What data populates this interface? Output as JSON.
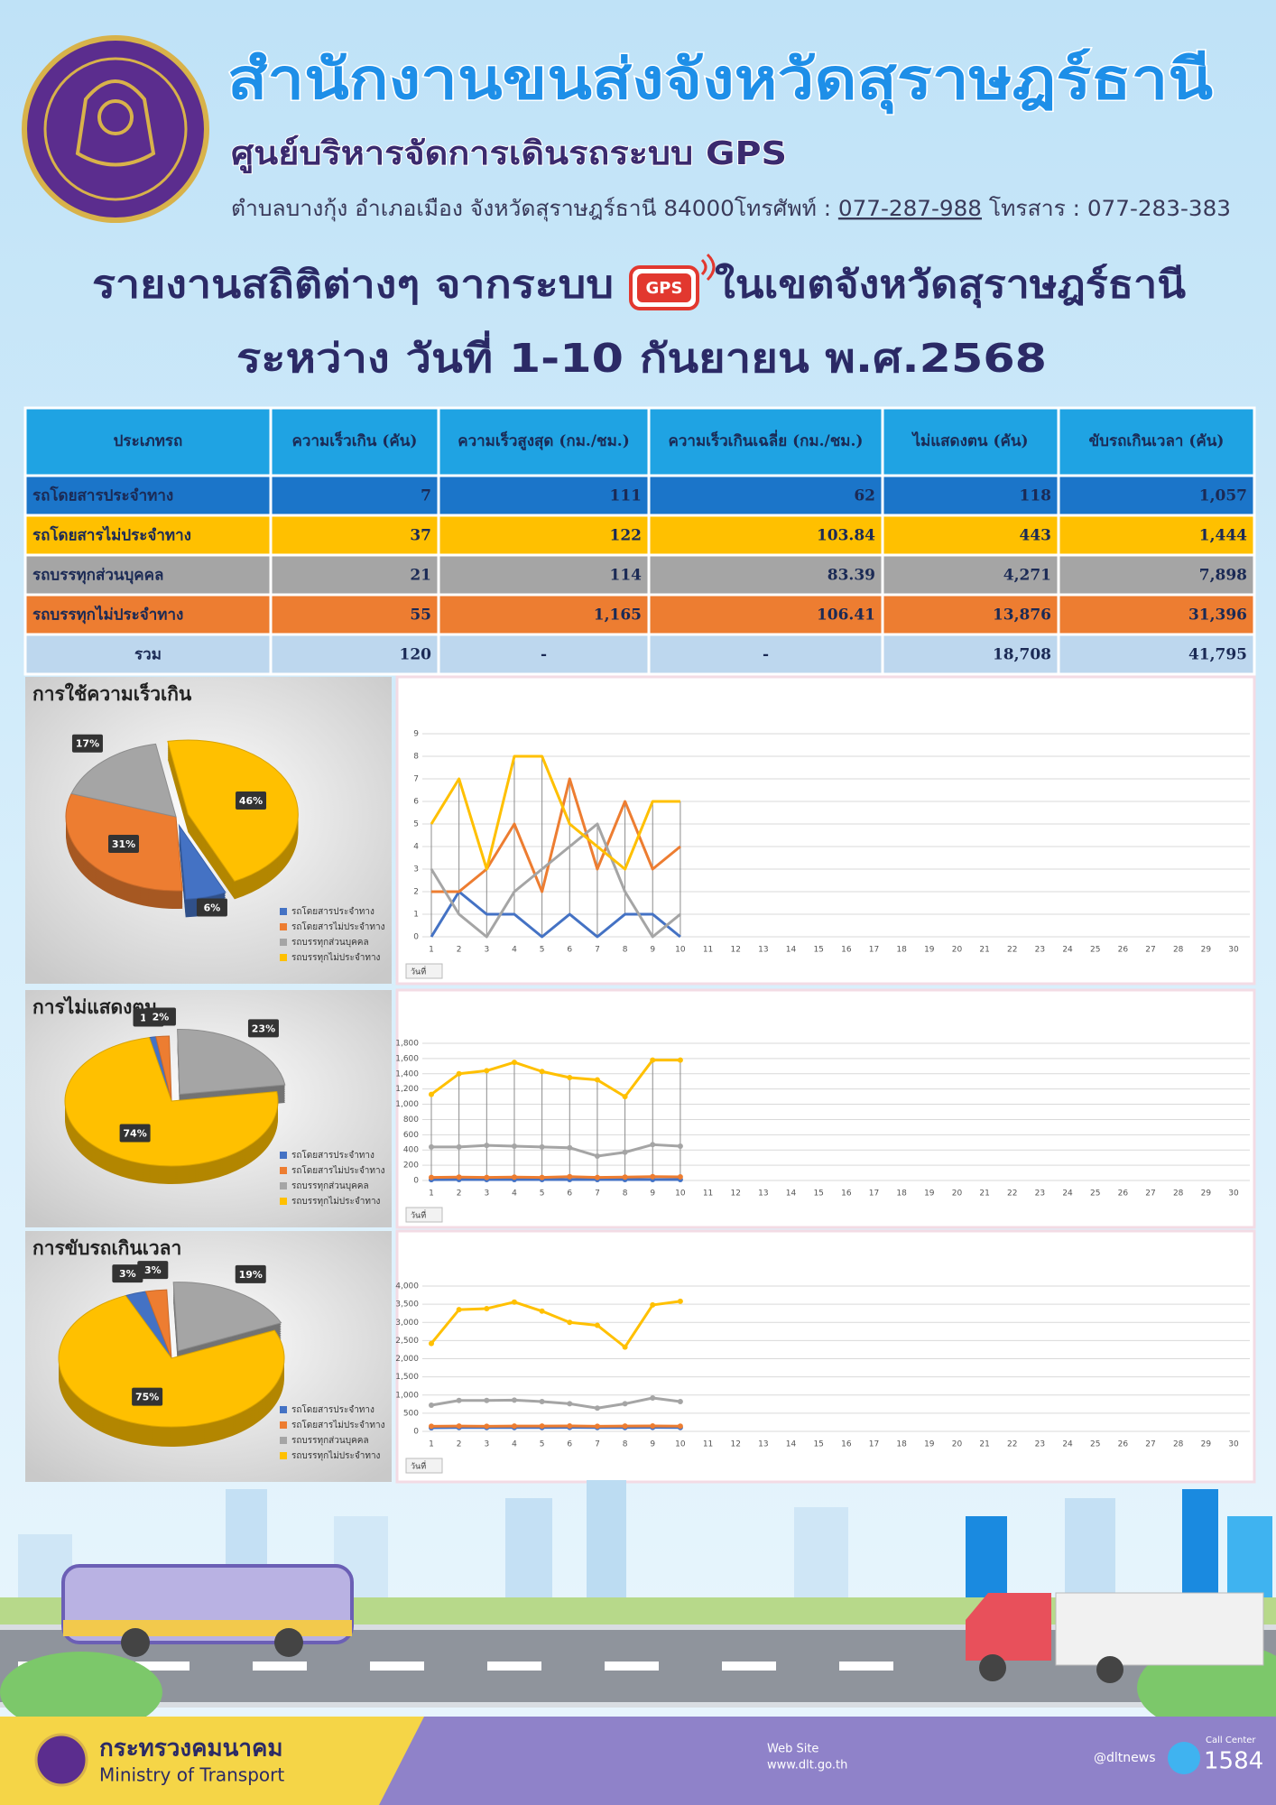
{
  "header": {
    "org": "สำนักงานขนส่งจังหวัดสุราษฎร์ธานี",
    "center": "ศูนย์บริหารจัดการเดินรถระบบ GPS",
    "address": "ตำบลบางกุ้ง อำเภอเมือง จังหวัดสุราษฎร์ธานี 84000โทรศัพท์ : ",
    "phone": "077-287-988",
    "fax": " โทรสาร : 077-283-383"
  },
  "report": {
    "title_before": "รายงานสถิติต่างๆ จากระบบ",
    "gps": "GPS",
    "title_after": "ในเขตจังหวัดสุราษฎร์ธานี",
    "period": "ระหว่าง วันที่ 1-10 กันยายน พ.ศ.2568"
  },
  "table": {
    "columns": [
      "ประเภทรถ",
      "ความเร็วเกิน (คัน)",
      "ความเร็วสูงสุด (กม./ชม.)",
      "ความเร็วเกินเฉลี่ย (กม./ชม.)",
      "ไม่แสดงตน (คัน)",
      "ขับรถเกินเวลา (คัน)"
    ],
    "rows": [
      [
        "รถโดยสารประจำทาง",
        "7",
        "111",
        "62",
        "118",
        "1,057"
      ],
      [
        "รถโดยสารไม่ประจำทาง",
        "37",
        "122",
        "103.84",
        "443",
        "1,444"
      ],
      [
        "รถบรรทุกส่วนบุคคล",
        "21",
        "114",
        "83.39",
        "4,271",
        "7,898"
      ],
      [
        "รถบรรทุกไม่ประจำทาง",
        "55",
        "1,165",
        "106.41",
        "13,876",
        "31,396"
      ],
      [
        "รวม",
        "120",
        "-",
        "-",
        "18,708",
        "41,795"
      ]
    ]
  },
  "chart_data": [
    {
      "type": "pie",
      "title": "การใช้ความเร็วเกิน",
      "categories": [
        "รถโดยสารประจำทาง",
        "รถโดยสารไม่ประจำทาง",
        "รถบรรทุกส่วนบุคคล",
        "รถบรรทุกไม่ประจำทาง"
      ],
      "values": [
        6,
        31,
        17,
        46
      ],
      "value_labels": [
        "6%",
        "31%",
        "17%",
        "46%"
      ],
      "colors": [
        "#4472c4",
        "#ed7d31",
        "#a5a5a5",
        "#ffc000"
      ]
    },
    {
      "type": "line",
      "x": [
        1,
        2,
        3,
        4,
        5,
        6,
        7,
        8,
        9,
        10
      ],
      "xlim": [
        1,
        30
      ],
      "xticks": [
        1,
        2,
        3,
        4,
        5,
        6,
        7,
        8,
        9,
        10,
        11,
        12,
        13,
        14,
        15,
        16,
        17,
        18,
        19,
        20,
        21,
        22,
        23,
        24,
        25,
        26,
        27,
        28,
        29,
        30
      ],
      "ylim": [
        0,
        9
      ],
      "yticks": [
        0,
        1,
        2,
        3,
        4,
        5,
        6,
        7,
        8,
        9
      ],
      "grid": true,
      "markers": false,
      "high_low_lines": true,
      "filter_label": "วันที่",
      "series": [
        {
          "color": "#4472c4",
          "values": [
            0,
            2,
            1,
            1,
            0,
            1,
            0,
            1,
            1,
            0
          ]
        },
        {
          "color": "#ed7d31",
          "values": [
            2,
            2,
            3,
            5,
            2,
            7,
            3,
            6,
            3,
            4
          ]
        },
        {
          "color": "#a5a5a5",
          "values": [
            3,
            1,
            0,
            2,
            3,
            4,
            5,
            2,
            0,
            1
          ]
        },
        {
          "color": "#ffc000",
          "values": [
            5,
            7,
            3,
            8,
            8,
            5,
            4,
            3,
            6,
            6
          ]
        }
      ]
    },
    {
      "type": "pie",
      "title": "การไม่แสดงตน",
      "categories": [
        "รถโดยสารประจำทาง",
        "รถโดยสารไม่ประจำทาง",
        "รถบรรทุกส่วนบุคคล",
        "รถบรรทุกไม่ประจำทาง"
      ],
      "values": [
        1,
        2,
        23,
        74
      ],
      "value_labels": [
        "1%",
        "2%",
        "23%",
        "74%"
      ],
      "colors": [
        "#4472c4",
        "#ed7d31",
        "#a5a5a5",
        "#ffc000"
      ]
    },
    {
      "type": "line",
      "x": [
        1,
        2,
        3,
        4,
        5,
        6,
        7,
        8,
        9,
        10
      ],
      "xlim": [
        1,
        30
      ],
      "xticks": [
        1,
        2,
        3,
        4,
        5,
        6,
        7,
        8,
        9,
        10,
        11,
        12,
        13,
        14,
        15,
        16,
        17,
        18,
        19,
        20,
        21,
        22,
        23,
        24,
        25,
        26,
        27,
        28,
        29,
        30
      ],
      "ylim": [
        0,
        1800
      ],
      "yticks": [
        0,
        200,
        400,
        600,
        800,
        {
          "value": 1000,
          "label": "1,000"
        },
        {
          "value": 1200,
          "label": "1,200"
        },
        {
          "value": 1400,
          "label": "1,400"
        },
        {
          "value": 1600,
          "label": "1,600"
        },
        {
          "value": 1800,
          "label": "1,800"
        }
      ],
      "grid": true,
      "markers": true,
      "high_low_lines": true,
      "filter_label": "วันที่",
      "series": [
        {
          "color": "#4472c4",
          "values": [
            10,
            12,
            12,
            12,
            12,
            12,
            12,
            12,
            12,
            12
          ]
        },
        {
          "color": "#ed7d31",
          "values": [
            40,
            45,
            40,
            45,
            40,
            50,
            40,
            45,
            50,
            48
          ]
        },
        {
          "color": "#a5a5a5",
          "values": [
            440,
            440,
            460,
            450,
            440,
            430,
            320,
            370,
            470,
            450
          ]
        },
        {
          "color": "#ffc000",
          "values": [
            1130,
            1400,
            1440,
            1550,
            1430,
            1350,
            1320,
            1100,
            1580,
            1580
          ]
        }
      ]
    },
    {
      "type": "pie",
      "title": "การขับรถเกินเวลา",
      "categories": [
        "รถโดยสารประจำทาง",
        "รถโดยสารไม่ประจำทาง",
        "รถบรรทุกส่วนบุคคล",
        "รถบรรทุกไม่ประจำทาง"
      ],
      "values": [
        3,
        3,
        19,
        75
      ],
      "value_labels": [
        "3%",
        "3%",
        "19%",
        "75%"
      ],
      "colors": [
        "#4472c4",
        "#ed7d31",
        "#a5a5a5",
        "#ffc000"
      ]
    },
    {
      "type": "line",
      "x": [
        1,
        2,
        3,
        4,
        5,
        6,
        7,
        8,
        9,
        10
      ],
      "xlim": [
        1,
        30
      ],
      "xticks": [
        1,
        2,
        3,
        4,
        5,
        6,
        7,
        8,
        9,
        10,
        11,
        12,
        13,
        14,
        15,
        16,
        17,
        18,
        19,
        20,
        21,
        22,
        23,
        24,
        25,
        26,
        27,
        28,
        29,
        30
      ],
      "ylim": [
        0,
        4000
      ],
      "yticks": [
        0,
        500,
        {
          "value": 1000,
          "label": "1,000"
        },
        {
          "value": 1500,
          "label": "1,500"
        },
        {
          "value": 2000,
          "label": "2,000"
        },
        {
          "value": 2500,
          "label": "2,500"
        },
        {
          "value": 3000,
          "label": "3,000"
        },
        {
          "value": 3500,
          "label": "3,500"
        },
        {
          "value": 4000,
          "label": "4,000"
        }
      ],
      "grid": true,
      "markers": true,
      "high_low_lines": false,
      "filter_label": "วันที่",
      "series": [
        {
          "color": "#4472c4",
          "values": [
            100,
            105,
            105,
            105,
            105,
            110,
            105,
            105,
            110,
            107
          ]
        },
        {
          "color": "#ed7d31",
          "values": [
            140,
            145,
            140,
            145,
            145,
            150,
            140,
            145,
            150,
            144
          ]
        },
        {
          "color": "#a5a5a5",
          "values": [
            720,
            850,
            850,
            860,
            820,
            760,
            640,
            760,
            920,
            820
          ]
        },
        {
          "color": "#ffc000",
          "values": [
            2420,
            3350,
            3380,
            3560,
            3310,
            3000,
            2920,
            2320,
            3480,
            3580
          ]
        }
      ]
    }
  ],
  "footer": {
    "ministry_th": "กระทรวงคมนาคม",
    "ministry_en": "Ministry of Transport",
    "web_label": "Web Site",
    "web": "www.dlt.go.th",
    "social": "@dltnews",
    "call_center": "Call Center",
    "hotline": "1584"
  }
}
